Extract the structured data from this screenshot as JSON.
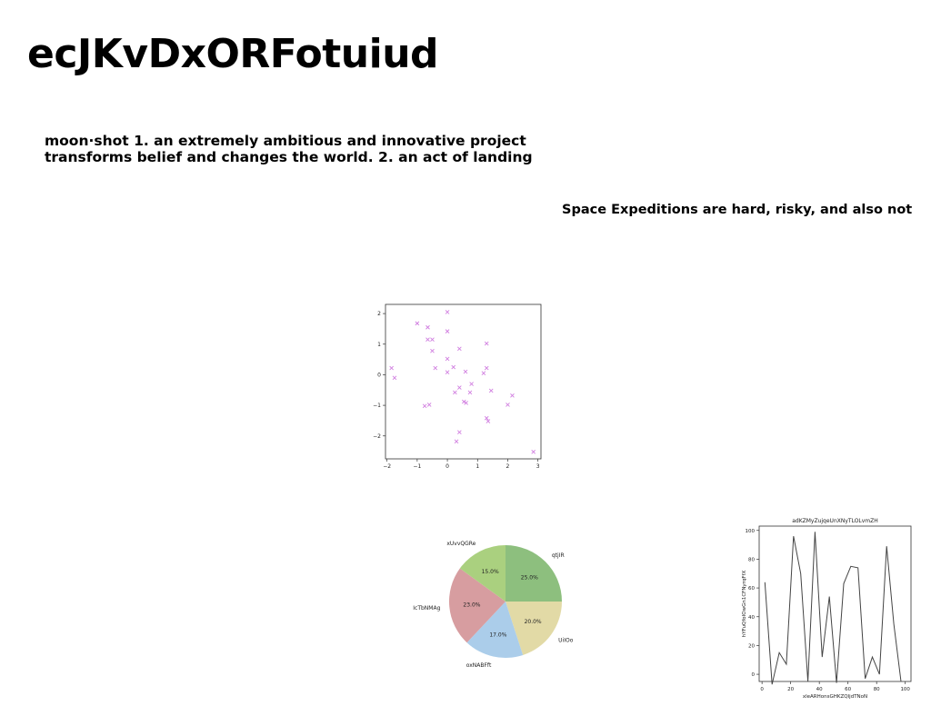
{
  "page": {
    "title": "ecJKvDxORFotuiud",
    "definition_line1": "moon·shot 1. an extremely ambitious and innovative project",
    "definition_line2": "transforms belief and changes the world. 2. an act of landing",
    "tagline": "Space Expeditions are hard, risky, and also not"
  },
  "colors": {
    "scatter_marker": "#d17fe0",
    "pie": [
      "#8dbf7e",
      "#e2daa6",
      "#abcdea",
      "#d79da0",
      "#aad07f"
    ],
    "line": "#444444"
  },
  "chart_data": [
    {
      "type": "scatter",
      "title": "",
      "xlabel": "",
      "ylabel": "",
      "marker": "x",
      "xlim": [
        -2.05,
        3.1
      ],
      "ylim": [
        -2.75,
        2.3
      ],
      "xticks": [
        -2,
        -1,
        0,
        1,
        2,
        3
      ],
      "yticks": [
        -2,
        -1,
        0,
        1,
        2
      ],
      "series": [
        {
          "points": [
            [
              0.0,
              2.05
            ],
            [
              -1.0,
              1.68
            ],
            [
              -0.65,
              1.55
            ],
            [
              -0.65,
              1.15
            ],
            [
              -0.5,
              1.15
            ],
            [
              0.0,
              1.42
            ],
            [
              0.4,
              0.85
            ],
            [
              -0.5,
              0.78
            ],
            [
              1.3,
              1.02
            ],
            [
              -1.85,
              0.22
            ],
            [
              -1.75,
              -0.1
            ],
            [
              -0.4,
              0.22
            ],
            [
              0.0,
              0.52
            ],
            [
              0.2,
              0.25
            ],
            [
              0.0,
              0.08
            ],
            [
              0.6,
              0.1
            ],
            [
              1.2,
              0.05
            ],
            [
              1.3,
              0.22
            ],
            [
              0.8,
              -0.3
            ],
            [
              0.4,
              -0.42
            ],
            [
              0.25,
              -0.58
            ],
            [
              0.75,
              -0.58
            ],
            [
              1.45,
              -0.52
            ],
            [
              2.15,
              -0.68
            ],
            [
              0.55,
              -0.88
            ],
            [
              0.62,
              -0.92
            ],
            [
              2.0,
              -0.98
            ],
            [
              -0.6,
              -0.98
            ],
            [
              -0.75,
              -1.02
            ],
            [
              1.3,
              -1.42
            ],
            [
              1.35,
              -1.52
            ],
            [
              0.4,
              -1.88
            ],
            [
              0.3,
              -2.18
            ],
            [
              2.85,
              -2.52
            ]
          ]
        }
      ]
    },
    {
      "type": "pie",
      "title": "",
      "categories": [
        "qtjIR",
        "UiIOo",
        "oxNABFft",
        "IcTbNMAg",
        "xUvvQGRe"
      ],
      "values": [
        25.0,
        20.0,
        17.0,
        23.0,
        15.0
      ],
      "labels": [
        "25.0%",
        "20.0%",
        "17.0%",
        "23.0%",
        "15.0%"
      ]
    },
    {
      "type": "line",
      "title": "adKZMyZujqeUnXNyTLOLvmZH",
      "xlabel": "xleARHonsGHKZQIjdTNoN",
      "ylabel": "hYFuQfoIOwGn1CFNyrqFfX",
      "xlim": [
        -2,
        104
      ],
      "ylim": [
        -5,
        103
      ],
      "xticks": [
        0,
        20,
        40,
        60,
        80,
        100
      ],
      "yticks": [
        0,
        20,
        40,
        60,
        80,
        100
      ],
      "x": [
        2,
        7,
        12,
        17,
        22,
        27,
        32,
        37,
        42,
        47,
        52,
        57,
        62,
        67,
        72,
        77,
        82,
        87,
        92,
        97
      ],
      "y": [
        64,
        -7,
        15,
        7,
        96,
        70,
        -5,
        99,
        12,
        54,
        -6,
        63,
        75,
        74,
        -3,
        12,
        0,
        89,
        35,
        -5
      ]
    }
  ]
}
